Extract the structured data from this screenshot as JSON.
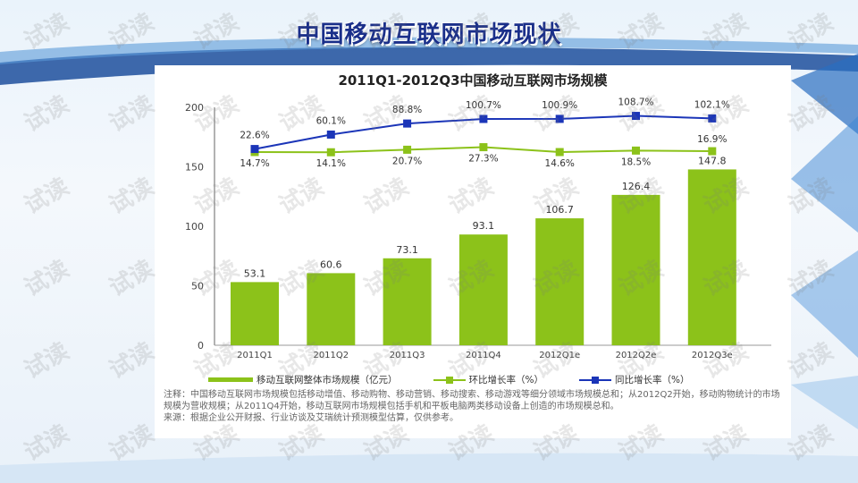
{
  "slide_title": "中国移动互联网市场现状",
  "watermark": "试读",
  "colors": {
    "bar": "#8cc21a",
    "mom_line": "#8cc21a",
    "yoy_line": "#1b35b8",
    "title": "#1a2f8a"
  },
  "chart_data": {
    "type": "bar+line",
    "title": "2011Q1-2012Q3中国移动互联网市场规模",
    "categories": [
      "2011Q1",
      "2011Q2",
      "2011Q3",
      "2011Q4",
      "2012Q1e",
      "2012Q2e",
      "2012Q3e"
    ],
    "ylim": [
      0,
      200
    ],
    "yticks": [
      0,
      50,
      100,
      150,
      200
    ],
    "grid": false,
    "legend_position": "bottom",
    "series": [
      {
        "name": "移动互联网整体市场规模（亿元）",
        "type": "bar",
        "values": [
          53.1,
          60.6,
          73.1,
          93.1,
          106.7,
          126.4,
          147.8
        ],
        "labels": [
          "53.1",
          "60.6",
          "73.1",
          "93.1",
          "106.7",
          "126.4",
          "147.8"
        ]
      },
      {
        "name": "环比增长率（%）",
        "type": "line",
        "values": [
          14.7,
          14.1,
          20.7,
          27.3,
          14.6,
          18.5,
          16.9
        ],
        "labels": [
          "14.7%",
          "14.1%",
          "20.7%",
          "27.3%",
          "14.6%",
          "18.5%",
          "16.9%"
        ]
      },
      {
        "name": "同比增长率（%）",
        "type": "line",
        "values": [
          22.6,
          60.1,
          88.8,
          100.7,
          100.9,
          108.7,
          102.1
        ],
        "labels": [
          "22.6%",
          "60.1%",
          "88.8%",
          "100.7%",
          "100.9%",
          "108.7%",
          "102.1%"
        ]
      }
    ]
  },
  "notes": [
    "注释：中国移动互联网市场规模包括移动增值、移动购物、移动营销、移动搜索、移动游戏等细分领域市场规模总和；从2012Q2开始，移动购物统计的市场规模为营收规模；从2011Q4开始，移动互联网市场规模包括手机和平板电脑两类移动设备上创造的市场规模总和。",
    "来源：根据企业公开财报、行业访谈及艾瑞统计预测模型估算，仅供参考。"
  ]
}
